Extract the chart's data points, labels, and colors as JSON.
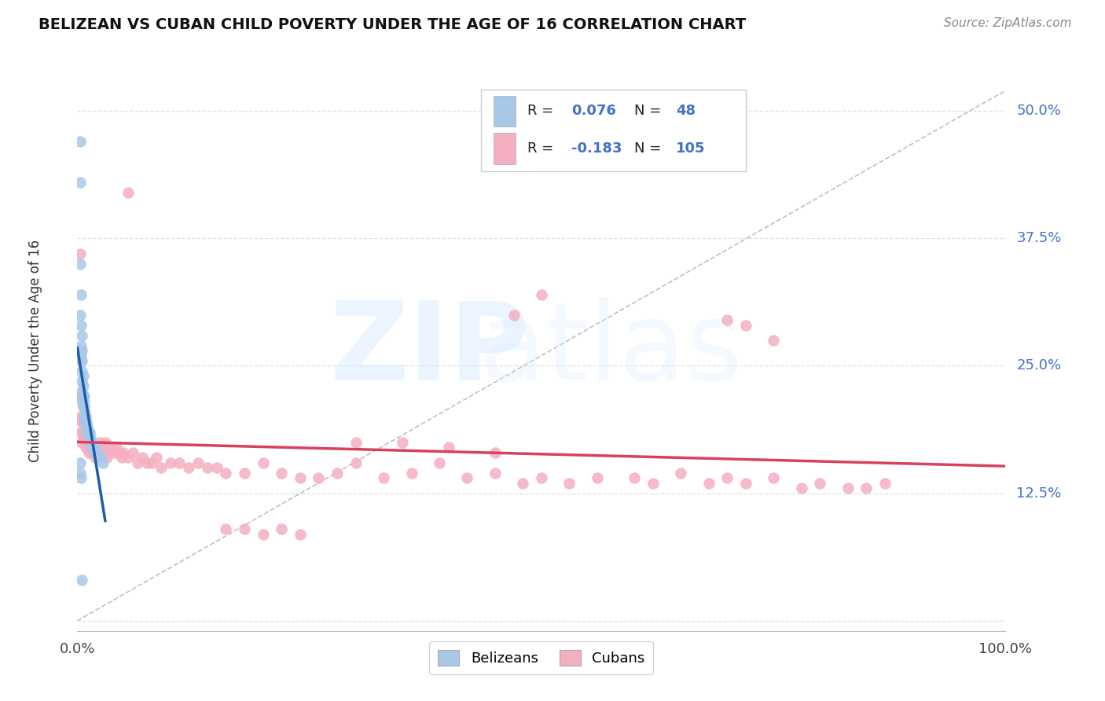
{
  "title": "BELIZEAN VS CUBAN CHILD POVERTY UNDER THE AGE OF 16 CORRELATION CHART",
  "source": "Source: ZipAtlas.com",
  "ylabel": "Child Poverty Under the Age of 16",
  "xlim": [
    0.0,
    1.0
  ],
  "ylim": [
    -0.01,
    0.54
  ],
  "yticks": [
    0.0,
    0.125,
    0.25,
    0.375,
    0.5
  ],
  "ytick_labels": [
    "",
    "12.5%",
    "25.0%",
    "37.5%",
    "50.0%"
  ],
  "xtick_labels": [
    "0.0%",
    "100.0%"
  ],
  "belize_color": "#a8c8e8",
  "cuba_color": "#f4b0c0",
  "belize_line_color": "#1a5cb0",
  "cuba_line_color": "#d84060",
  "background_color": "#ffffff",
  "grid_color": "#e0e0e0",
  "legend_blue": "#4472c4",
  "belize_x": [
    0.003,
    0.003,
    0.003,
    0.003,
    0.004,
    0.004,
    0.004,
    0.004,
    0.005,
    0.005,
    0.005,
    0.005,
    0.005,
    0.005,
    0.005,
    0.006,
    0.006,
    0.006,
    0.006,
    0.007,
    0.007,
    0.007,
    0.007,
    0.008,
    0.008,
    0.008,
    0.009,
    0.009,
    0.01,
    0.01,
    0.01,
    0.011,
    0.012,
    0.012,
    0.013,
    0.014,
    0.015,
    0.015,
    0.016,
    0.018,
    0.02,
    0.022,
    0.025,
    0.028,
    0.003,
    0.003,
    0.004,
    0.005
  ],
  "belize_y": [
    0.47,
    0.43,
    0.35,
    0.3,
    0.32,
    0.29,
    0.27,
    0.26,
    0.28,
    0.265,
    0.255,
    0.245,
    0.235,
    0.225,
    0.215,
    0.24,
    0.23,
    0.22,
    0.21,
    0.22,
    0.215,
    0.21,
    0.2,
    0.205,
    0.2,
    0.195,
    0.2,
    0.195,
    0.195,
    0.19,
    0.185,
    0.19,
    0.185,
    0.18,
    0.185,
    0.18,
    0.175,
    0.17,
    0.175,
    0.17,
    0.165,
    0.165,
    0.16,
    0.155,
    0.155,
    0.145,
    0.14,
    0.04
  ],
  "cuba_x": [
    0.003,
    0.003,
    0.004,
    0.004,
    0.004,
    0.005,
    0.005,
    0.005,
    0.005,
    0.006,
    0.006,
    0.006,
    0.007,
    0.007,
    0.008,
    0.008,
    0.009,
    0.009,
    0.01,
    0.01,
    0.011,
    0.011,
    0.012,
    0.012,
    0.013,
    0.014,
    0.015,
    0.015,
    0.016,
    0.017,
    0.018,
    0.019,
    0.02,
    0.022,
    0.024,
    0.025,
    0.027,
    0.028,
    0.03,
    0.032,
    0.035,
    0.038,
    0.04,
    0.042,
    0.045,
    0.048,
    0.05,
    0.055,
    0.06,
    0.065,
    0.07,
    0.075,
    0.08,
    0.085,
    0.09,
    0.1,
    0.11,
    0.12,
    0.13,
    0.14,
    0.15,
    0.16,
    0.18,
    0.2,
    0.22,
    0.24,
    0.26,
    0.28,
    0.3,
    0.33,
    0.36,
    0.39,
    0.42,
    0.45,
    0.48,
    0.5,
    0.53,
    0.56,
    0.6,
    0.62,
    0.65,
    0.68,
    0.7,
    0.72,
    0.75,
    0.78,
    0.8,
    0.83,
    0.85,
    0.87,
    0.055,
    0.47,
    0.5,
    0.7,
    0.72,
    0.75,
    0.3,
    0.35,
    0.4,
    0.45,
    0.16,
    0.18,
    0.2,
    0.22,
    0.24
  ],
  "cuba_y": [
    0.36,
    0.22,
    0.255,
    0.2,
    0.185,
    0.22,
    0.195,
    0.185,
    0.175,
    0.21,
    0.195,
    0.18,
    0.195,
    0.18,
    0.19,
    0.175,
    0.185,
    0.17,
    0.19,
    0.175,
    0.185,
    0.17,
    0.18,
    0.165,
    0.175,
    0.17,
    0.175,
    0.165,
    0.17,
    0.165,
    0.17,
    0.16,
    0.17,
    0.165,
    0.175,
    0.165,
    0.17,
    0.165,
    0.175,
    0.16,
    0.165,
    0.17,
    0.165,
    0.17,
    0.165,
    0.16,
    0.165,
    0.16,
    0.165,
    0.155,
    0.16,
    0.155,
    0.155,
    0.16,
    0.15,
    0.155,
    0.155,
    0.15,
    0.155,
    0.15,
    0.15,
    0.145,
    0.145,
    0.155,
    0.145,
    0.14,
    0.14,
    0.145,
    0.155,
    0.14,
    0.145,
    0.155,
    0.14,
    0.145,
    0.135,
    0.14,
    0.135,
    0.14,
    0.14,
    0.135,
    0.145,
    0.135,
    0.14,
    0.135,
    0.14,
    0.13,
    0.135,
    0.13,
    0.13,
    0.135,
    0.42,
    0.3,
    0.32,
    0.295,
    0.29,
    0.275,
    0.175,
    0.175,
    0.17,
    0.165,
    0.09,
    0.09,
    0.085,
    0.09,
    0.085
  ]
}
